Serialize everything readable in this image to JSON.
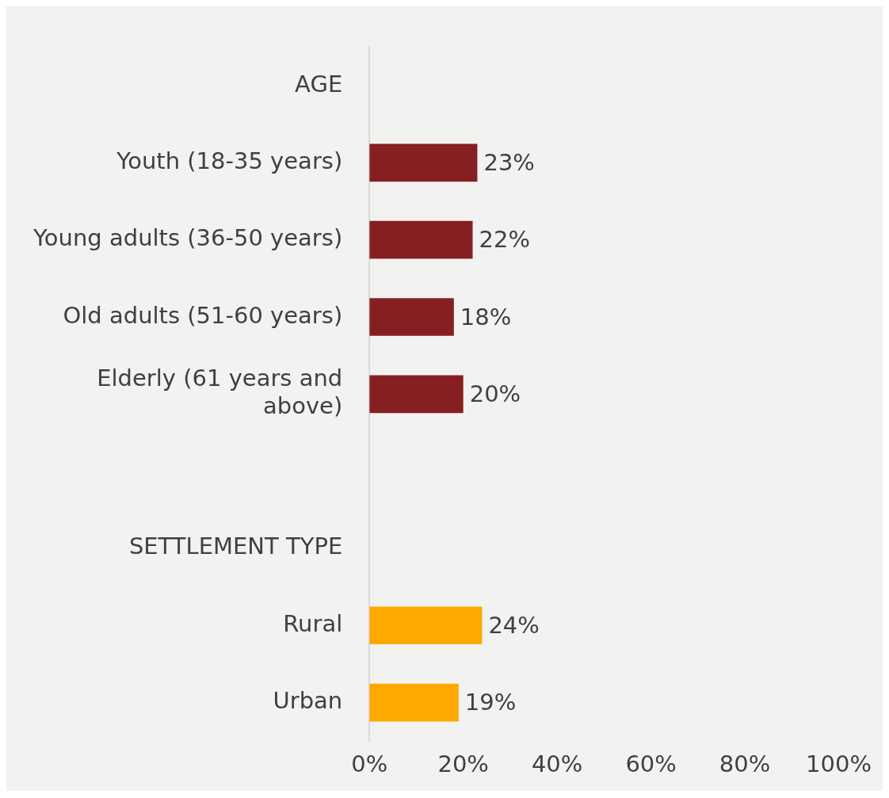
{
  "chart_data": {
    "type": "bar",
    "orientation": "horizontal",
    "categories": [
      "AGE",
      "Youth (18-35 years)",
      "Young adults (36-50 years)",
      "Old adults (51-60 years)",
      "Elderly (61 years and above)",
      null,
      "SETTLEMENT TYPE",
      "Rural",
      "Urban"
    ],
    "values": [
      null,
      23,
      22,
      18,
      20,
      null,
      null,
      24,
      19
    ],
    "colors": [
      "#861f22",
      "#861f22",
      "#861f22",
      "#861f22",
      "#861f22",
      "#861f22",
      "#ffa800",
      "#ffa800",
      "#ffa800"
    ],
    "value_labels": [
      null,
      "23%",
      "22%",
      "18%",
      "20%",
      null,
      null,
      "24%",
      "19%"
    ],
    "xlim": [
      0,
      100
    ],
    "xticks": [
      {
        "value": 0,
        "label": "0%"
      },
      {
        "value": 20,
        "label": "20%"
      },
      {
        "value": 40,
        "label": "40%"
      },
      {
        "value": 60,
        "label": "60%"
      },
      {
        "value": 80,
        "label": "80%"
      },
      {
        "value": 100,
        "label": "100%"
      }
    ],
    "grid": false
  }
}
